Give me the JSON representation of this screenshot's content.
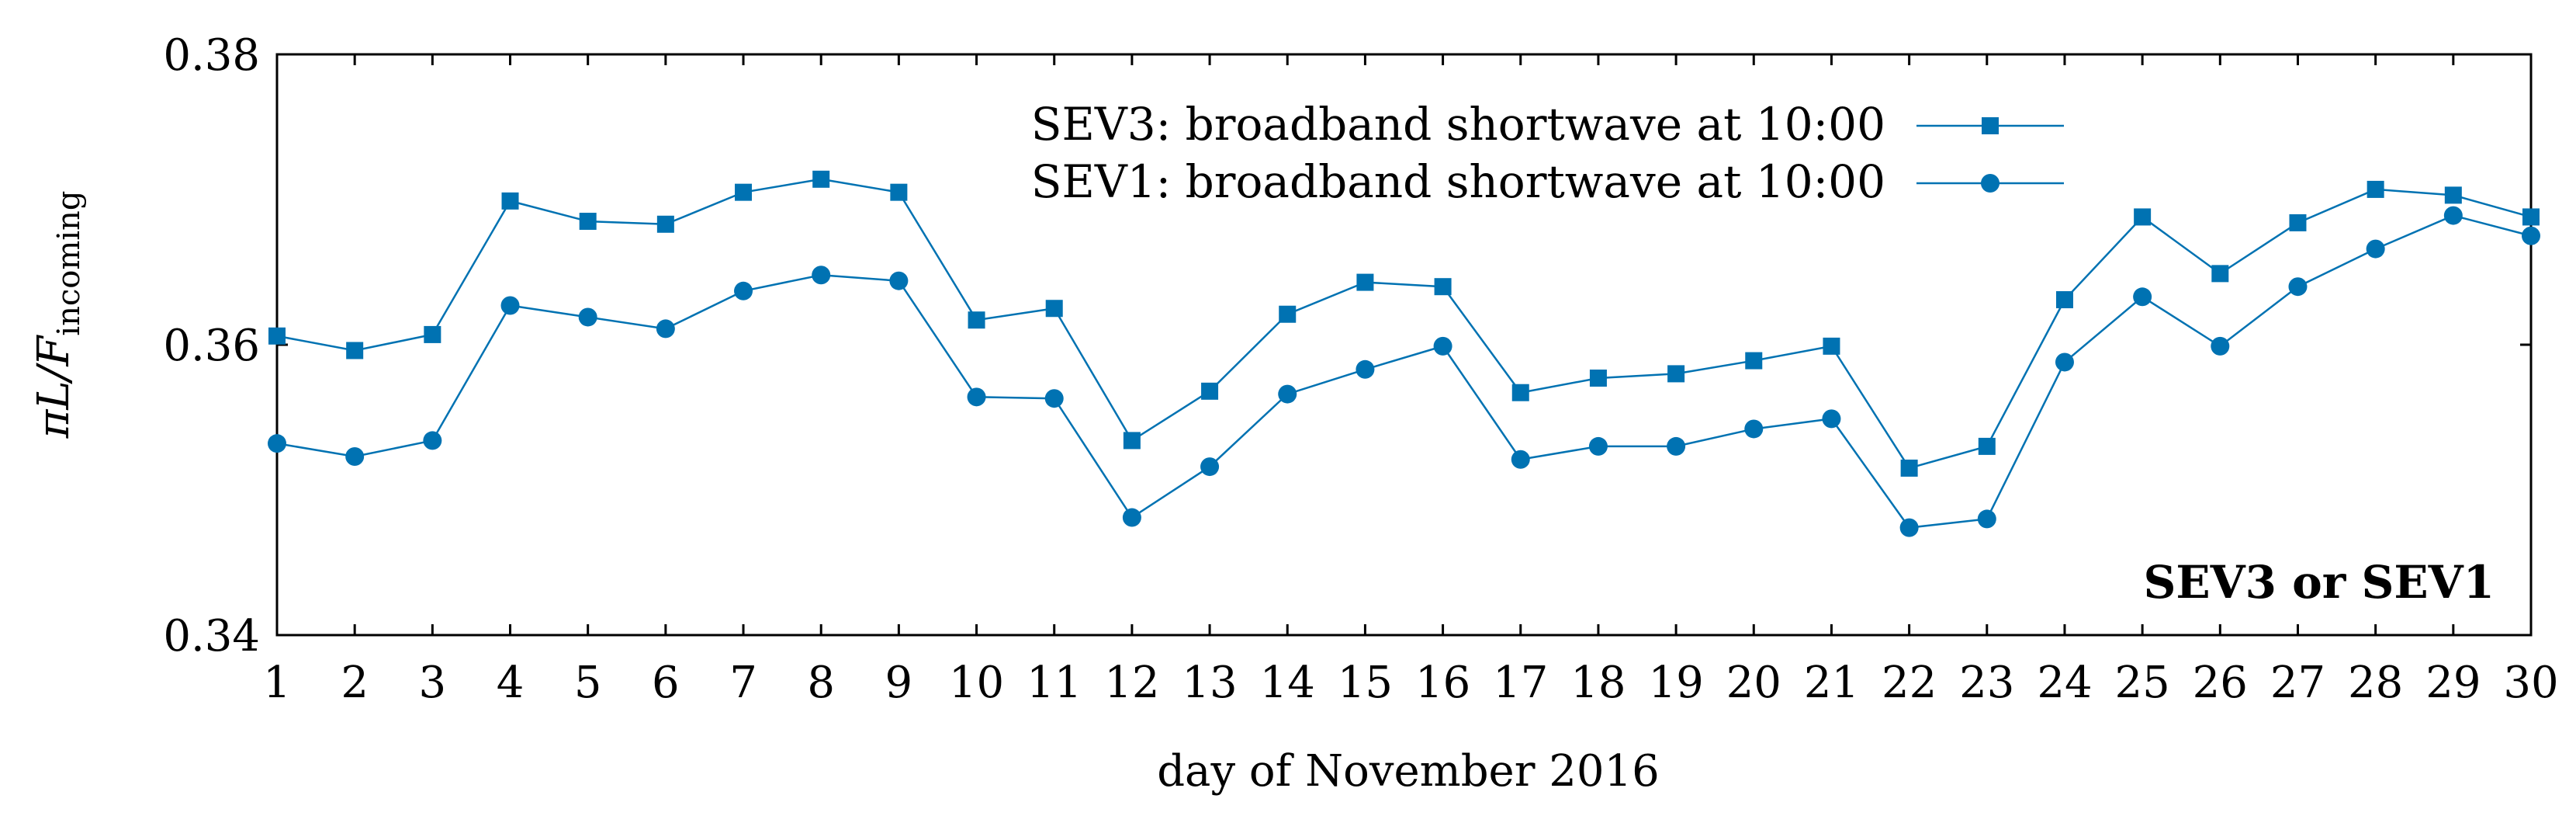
{
  "chart_data": {
    "type": "line",
    "x": [
      1,
      2,
      3,
      4,
      5,
      6,
      7,
      8,
      9,
      10,
      11,
      12,
      13,
      14,
      15,
      16,
      17,
      18,
      19,
      20,
      21,
      22,
      23,
      24,
      25,
      26,
      27,
      28,
      29,
      30
    ],
    "xlabel": "day of November 2016",
    "ylabel_main": "πL/F",
    "ylabel_sub": "incoming",
    "ylim": [
      0.34,
      0.38
    ],
    "xlim": [
      1,
      30
    ],
    "yticks": [
      "0.34",
      "0.36",
      "0.38"
    ],
    "xticks": [
      "1",
      "2",
      "3",
      "4",
      "5",
      "6",
      "7",
      "8",
      "9",
      "10",
      "11",
      "12",
      "13",
      "14",
      "15",
      "16",
      "17",
      "18",
      "19",
      "20",
      "21",
      "22",
      "23",
      "24",
      "25",
      "26",
      "27",
      "28",
      "29",
      "30"
    ],
    "grid": false,
    "legend_position": "top-right",
    "annotation": "SEV3 or SEV1",
    "series": [
      {
        "name": "SEV3: broadband shortwave at 10:00",
        "marker": "square",
        "color": "#0072b2",
        "values": [
          0.3606,
          0.3596,
          0.3607,
          0.3699,
          0.3685,
          0.3683,
          0.3705,
          0.3714,
          0.3705,
          0.3617,
          0.3625,
          0.3534,
          0.3568,
          0.3621,
          0.3643,
          0.364,
          0.3567,
          0.3577,
          0.358,
          0.3589,
          0.3599,
          0.3515,
          0.353,
          0.3631,
          0.3688,
          0.3649,
          0.3684,
          0.3707,
          0.3703,
          0.3688
        ]
      },
      {
        "name": "SEV1: broadband shortwave at 10:00",
        "marker": "circle",
        "color": "#0072b2",
        "values": [
          0.3532,
          0.3523,
          0.3534,
          0.3627,
          0.3619,
          0.3611,
          0.3637,
          0.3648,
          0.3644,
          0.3564,
          0.3563,
          0.3481,
          0.3516,
          0.3566,
          0.3583,
          0.3599,
          0.3521,
          0.353,
          0.353,
          0.3542,
          0.3549,
          0.3474,
          0.348,
          0.3588,
          0.3633,
          0.3599,
          0.364,
          0.3666,
          0.3689,
          0.3675
        ]
      }
    ]
  }
}
